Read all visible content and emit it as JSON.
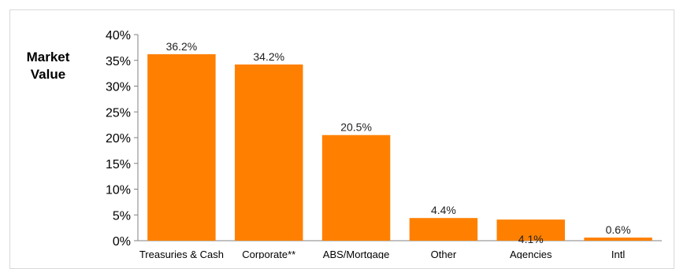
{
  "chart_data": {
    "type": "bar",
    "title": "",
    "xlabel": "",
    "ylabel": [
      "Market",
      "Value"
    ],
    "categories": [
      "Treasuries & Cash",
      "Corporate**",
      "ABS/Mortgage",
      "Other",
      "Agencies",
      "Intl"
    ],
    "values": [
      36.2,
      34.2,
      20.5,
      4.4,
      4.1,
      0.6
    ],
    "data_labels": [
      "36.2%",
      "34.2%",
      "20.5%",
      "4.4%",
      "4.1%",
      "0.6%"
    ],
    "ylim": [
      0,
      40
    ],
    "yticks": [
      0,
      5,
      10,
      15,
      20,
      25,
      30,
      35,
      40
    ],
    "ytick_labels": [
      "0%",
      "5%",
      "10%",
      "15%",
      "20%",
      "25%",
      "30%",
      "35%",
      "40%"
    ],
    "grid": false,
    "legend": "none",
    "bar_color": "#ff8000"
  }
}
